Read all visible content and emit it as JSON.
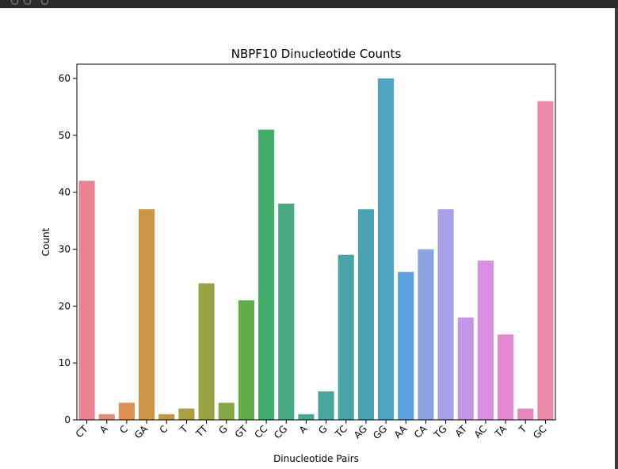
{
  "chart_data": {
    "type": "bar",
    "title": "NBPF10 Dinucleotide Counts",
    "xlabel": "Dinucleotide Pairs",
    "ylabel": "Count",
    "ylim": [
      0,
      62.5
    ],
    "yticks": [
      0,
      10,
      20,
      30,
      40,
      50,
      60
    ],
    "grid": false,
    "categories": [
      "CT",
      "A",
      "C",
      "GA",
      "C",
      "T",
      "TT",
      "G",
      "GT",
      "CC",
      "CG",
      "A",
      "G",
      "TC",
      "AG",
      "GG",
      "AA",
      "CA",
      "TG",
      "AT",
      "AC",
      "TA",
      "T",
      "GC"
    ],
    "values": [
      42,
      1,
      3,
      37,
      1,
      2,
      24,
      3,
      21,
      51,
      38,
      1,
      5,
      29,
      37,
      60,
      26,
      30,
      37,
      18,
      28,
      15,
      2,
      56
    ],
    "colors": [
      "#e8848f",
      "#e38a7a",
      "#de8f52",
      "#ce9343",
      "#bf9a43",
      "#ac9e43",
      "#9aa343",
      "#84a843",
      "#5fae48",
      "#44ad6c",
      "#47a985",
      "#48a793",
      "#49a69e",
      "#49a5a8",
      "#4aa3b3",
      "#4ca3c3",
      "#5ca0dd",
      "#8da4e3",
      "#a89fe6",
      "#c496e5",
      "#db8fe3",
      "#e389d2",
      "#e788bd",
      "#e98aa8"
    ]
  }
}
